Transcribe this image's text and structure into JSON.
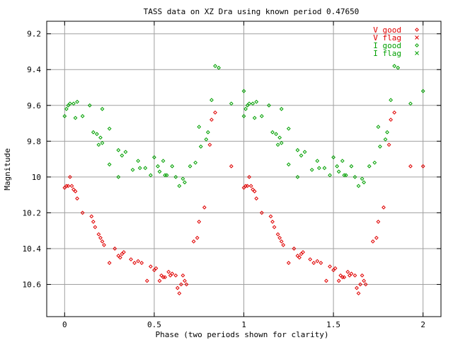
{
  "chart_data": {
    "type": "scatter",
    "title": "TASS data on XZ Dra  using known period 0.47650",
    "xlabel": "Phase (two periods shown for clarity)",
    "ylabel": "Magnitude",
    "xlim": [
      -0.1,
      2.1
    ],
    "ylim": [
      9.13,
      10.78
    ],
    "y_inverted": true,
    "grid": true,
    "legend_placement": "top-right",
    "xticks": [
      0,
      0.5,
      1,
      1.5,
      2
    ],
    "xtick_labels": [
      "0",
      "0.5",
      "1",
      "1.5",
      "2"
    ],
    "yticks": [
      9.2,
      9.4,
      9.6,
      9.8,
      10,
      10.2,
      10.4,
      10.6
    ],
    "ytick_labels": [
      "9.2",
      "9.4",
      "9.6",
      "9.8",
      "10",
      "10.2",
      "10.4",
      "10.6"
    ],
    "series": [
      {
        "name": "V good",
        "color": "#e00000",
        "marker": "diamond",
        "points": [
          [
            0.0,
            10.06
          ],
          [
            0.01,
            10.05
          ],
          [
            0.02,
            10.05
          ],
          [
            0.03,
            10.0
          ],
          [
            0.04,
            10.05
          ],
          [
            0.05,
            10.07
          ],
          [
            0.06,
            10.08
          ],
          [
            0.07,
            10.12
          ],
          [
            0.1,
            10.2
          ],
          [
            0.15,
            10.22
          ],
          [
            0.16,
            10.25
          ],
          [
            0.17,
            10.28
          ],
          [
            0.19,
            10.32
          ],
          [
            0.2,
            10.34
          ],
          [
            0.21,
            10.36
          ],
          [
            0.22,
            10.38
          ],
          [
            0.25,
            10.48
          ],
          [
            0.28,
            10.4
          ],
          [
            0.3,
            10.44
          ],
          [
            0.31,
            10.45
          ],
          [
            0.32,
            10.43
          ],
          [
            0.33,
            10.42
          ],
          [
            0.37,
            10.46
          ],
          [
            0.39,
            10.48
          ],
          [
            0.41,
            10.47
          ],
          [
            0.43,
            10.48
          ],
          [
            0.46,
            10.58
          ],
          [
            0.48,
            10.5
          ],
          [
            0.5,
            10.52
          ],
          [
            0.51,
            10.51
          ],
          [
            0.53,
            10.58
          ],
          [
            0.54,
            10.55
          ],
          [
            0.55,
            10.56
          ],
          [
            0.56,
            10.56
          ],
          [
            0.58,
            10.53
          ],
          [
            0.59,
            10.55
          ],
          [
            0.6,
            10.54
          ],
          [
            0.62,
            10.55
          ],
          [
            0.63,
            10.62
          ],
          [
            0.64,
            10.65
          ],
          [
            0.65,
            10.6
          ],
          [
            0.66,
            10.55
          ],
          [
            0.67,
            10.58
          ],
          [
            0.68,
            10.6
          ],
          [
            0.72,
            10.36
          ],
          [
            0.74,
            10.34
          ],
          [
            0.75,
            10.25
          ],
          [
            0.78,
            10.17
          ],
          [
            0.81,
            9.82
          ],
          [
            0.82,
            9.68
          ],
          [
            0.84,
            9.64
          ],
          [
            0.93,
            9.94
          ],
          [
            1.0,
            10.06
          ],
          [
            1.01,
            10.05
          ],
          [
            1.02,
            10.05
          ],
          [
            1.03,
            10.0
          ],
          [
            1.04,
            10.05
          ],
          [
            1.05,
            10.07
          ],
          [
            1.06,
            10.08
          ],
          [
            1.07,
            10.12
          ],
          [
            1.1,
            10.2
          ],
          [
            1.15,
            10.22
          ],
          [
            1.16,
            10.25
          ],
          [
            1.17,
            10.28
          ],
          [
            1.19,
            10.32
          ],
          [
            1.2,
            10.34
          ],
          [
            1.21,
            10.36
          ],
          [
            1.22,
            10.38
          ],
          [
            1.25,
            10.48
          ],
          [
            1.28,
            10.4
          ],
          [
            1.3,
            10.44
          ],
          [
            1.31,
            10.45
          ],
          [
            1.32,
            10.43
          ],
          [
            1.33,
            10.42
          ],
          [
            1.37,
            10.46
          ],
          [
            1.39,
            10.48
          ],
          [
            1.41,
            10.47
          ],
          [
            1.43,
            10.48
          ],
          [
            1.46,
            10.58
          ],
          [
            1.48,
            10.5
          ],
          [
            1.5,
            10.52
          ],
          [
            1.51,
            10.51
          ],
          [
            1.53,
            10.58
          ],
          [
            1.54,
            10.55
          ],
          [
            1.55,
            10.56
          ],
          [
            1.56,
            10.56
          ],
          [
            1.58,
            10.53
          ],
          [
            1.59,
            10.55
          ],
          [
            1.6,
            10.54
          ],
          [
            1.62,
            10.55
          ],
          [
            1.63,
            10.62
          ],
          [
            1.64,
            10.65
          ],
          [
            1.65,
            10.6
          ],
          [
            1.66,
            10.55
          ],
          [
            1.67,
            10.58
          ],
          [
            1.68,
            10.6
          ],
          [
            1.72,
            10.36
          ],
          [
            1.74,
            10.34
          ],
          [
            1.75,
            10.25
          ],
          [
            1.78,
            10.17
          ],
          [
            1.81,
            9.82
          ],
          [
            1.82,
            9.68
          ],
          [
            1.84,
            9.64
          ],
          [
            1.93,
            9.94
          ],
          [
            2.0,
            9.94
          ]
        ]
      },
      {
        "name": "V flag",
        "color": "#e00000",
        "marker": "cross",
        "points": []
      },
      {
        "name": "I good",
        "color": "#00a000",
        "marker": "diamond",
        "points": [
          [
            0.0,
            9.66
          ],
          [
            0.01,
            9.62
          ],
          [
            0.02,
            9.6
          ],
          [
            0.03,
            9.59
          ],
          [
            0.05,
            9.59
          ],
          [
            0.06,
            9.67
          ],
          [
            0.07,
            9.58
          ],
          [
            0.1,
            9.66
          ],
          [
            0.14,
            9.6
          ],
          [
            0.16,
            9.75
          ],
          [
            0.18,
            9.76
          ],
          [
            0.19,
            9.82
          ],
          [
            0.2,
            9.78
          ],
          [
            0.21,
            9.81
          ],
          [
            0.21,
            9.62
          ],
          [
            0.25,
            9.73
          ],
          [
            0.25,
            9.93
          ],
          [
            0.3,
            9.85
          ],
          [
            0.3,
            10.0
          ],
          [
            0.32,
            9.88
          ],
          [
            0.34,
            9.86
          ],
          [
            0.38,
            9.96
          ],
          [
            0.41,
            9.91
          ],
          [
            0.42,
            9.95
          ],
          [
            0.45,
            9.95
          ],
          [
            0.48,
            9.99
          ],
          [
            0.5,
            9.89
          ],
          [
            0.52,
            9.94
          ],
          [
            0.53,
            9.97
          ],
          [
            0.55,
            9.91
          ],
          [
            0.56,
            9.99
          ],
          [
            0.57,
            9.99
          ],
          [
            0.6,
            9.94
          ],
          [
            0.62,
            10.0
          ],
          [
            0.64,
            10.05
          ],
          [
            0.66,
            10.01
          ],
          [
            0.67,
            10.03
          ],
          [
            0.7,
            9.94
          ],
          [
            0.73,
            9.92
          ],
          [
            0.75,
            9.72
          ],
          [
            0.76,
            9.83
          ],
          [
            0.79,
            9.79
          ],
          [
            0.8,
            9.75
          ],
          [
            0.82,
            9.57
          ],
          [
            0.84,
            9.38
          ],
          [
            0.86,
            9.39
          ],
          [
            0.93,
            9.59
          ],
          [
            1.0,
            9.66
          ],
          [
            1.0,
            9.52
          ],
          [
            1.01,
            9.62
          ],
          [
            1.02,
            9.6
          ],
          [
            1.03,
            9.59
          ],
          [
            1.05,
            9.59
          ],
          [
            1.06,
            9.67
          ],
          [
            1.07,
            9.58
          ],
          [
            1.1,
            9.66
          ],
          [
            1.14,
            9.6
          ],
          [
            1.16,
            9.75
          ],
          [
            1.18,
            9.76
          ],
          [
            1.19,
            9.82
          ],
          [
            1.2,
            9.78
          ],
          [
            1.21,
            9.81
          ],
          [
            1.21,
            9.62
          ],
          [
            1.25,
            9.73
          ],
          [
            1.25,
            9.93
          ],
          [
            1.3,
            9.85
          ],
          [
            1.3,
            10.0
          ],
          [
            1.32,
            9.88
          ],
          [
            1.34,
            9.86
          ],
          [
            1.38,
            9.96
          ],
          [
            1.41,
            9.91
          ],
          [
            1.42,
            9.95
          ],
          [
            1.45,
            9.95
          ],
          [
            1.48,
            9.99
          ],
          [
            1.5,
            9.89
          ],
          [
            1.52,
            9.94
          ],
          [
            1.53,
            9.97
          ],
          [
            1.55,
            9.91
          ],
          [
            1.56,
            9.99
          ],
          [
            1.57,
            9.99
          ],
          [
            1.6,
            9.94
          ],
          [
            1.62,
            10.0
          ],
          [
            1.64,
            10.05
          ],
          [
            1.66,
            10.01
          ],
          [
            1.67,
            10.03
          ],
          [
            1.7,
            9.94
          ],
          [
            1.73,
            9.92
          ],
          [
            1.75,
            9.72
          ],
          [
            1.76,
            9.83
          ],
          [
            1.79,
            9.79
          ],
          [
            1.8,
            9.75
          ],
          [
            1.82,
            9.57
          ],
          [
            1.84,
            9.38
          ],
          [
            1.86,
            9.39
          ],
          [
            1.93,
            9.59
          ],
          [
            2.0,
            9.52
          ]
        ]
      },
      {
        "name": "I flag",
        "color": "#00a000",
        "marker": "cross",
        "points": []
      }
    ]
  }
}
